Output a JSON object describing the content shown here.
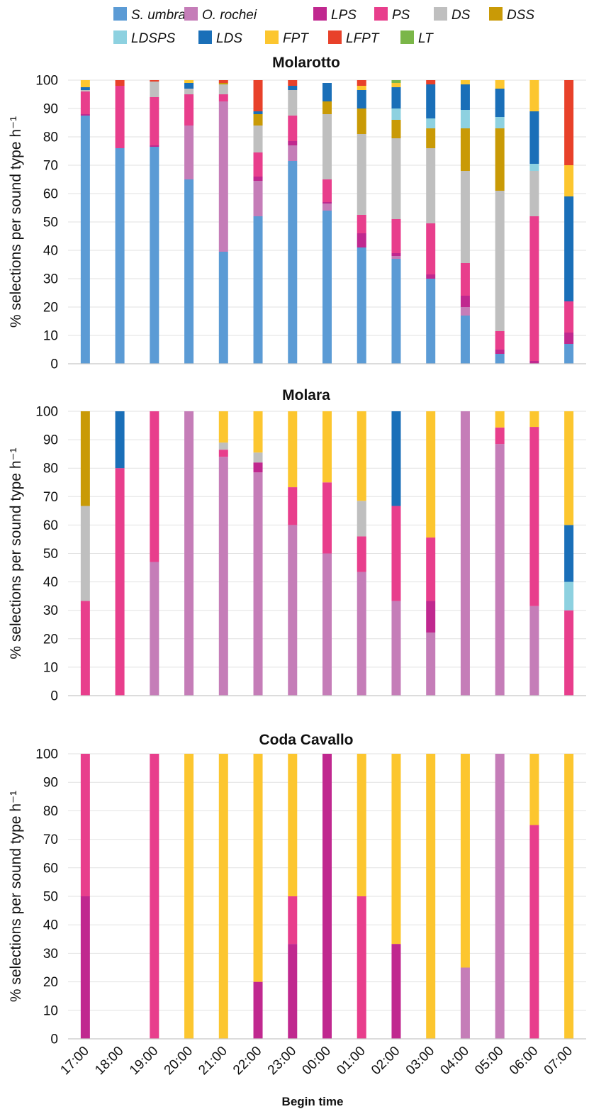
{
  "legend": [
    {
      "key": "S. umbra",
      "color": "#5b9bd5"
    },
    {
      "key": "O. rochei",
      "color": "#c57db8"
    },
    {
      "key": "LPS",
      "color": "#c0288f"
    },
    {
      "key": "PS",
      "color": "#e83e8c"
    },
    {
      "key": "DS",
      "color": "#bfbfbf"
    },
    {
      "key": "DSS",
      "color": "#c99a06"
    },
    {
      "key": "LDSPS",
      "color": "#8dd1e0"
    },
    {
      "key": "LDS",
      "color": "#1a6fb8"
    },
    {
      "key": "FPT",
      "color": "#fcc62f"
    },
    {
      "key": "LFPT",
      "color": "#e8412a"
    },
    {
      "key": "LT",
      "color": "#7ab648"
    }
  ],
  "x_axis_title": "Begin time",
  "chart_data": [
    {
      "type": "bar",
      "stacked": true,
      "title": "Molarotto",
      "ylabel": "% selections per sound type h⁻¹",
      "ylim": [
        0,
        100
      ],
      "yticks": [
        0,
        10,
        20,
        30,
        40,
        50,
        60,
        70,
        80,
        90,
        100
      ],
      "grid": true,
      "categories": [
        "17:00",
        "18:00",
        "19:00",
        "20:00",
        "21:00",
        "22:00",
        "23:00",
        "00:00",
        "01:00",
        "02:00",
        "03:00",
        "04:00",
        "05:00",
        "06:00",
        "07:00"
      ],
      "series": [
        {
          "name": "S. umbra",
          "values": [
            87.5,
            76,
            76.5,
            65,
            39.5,
            52,
            71.5,
            54,
            41,
            37,
            30,
            17,
            3.5,
            0,
            7
          ]
        },
        {
          "name": "O. rochei",
          "values": [
            0,
            0,
            0,
            19,
            53,
            12.5,
            5.5,
            2.5,
            0,
            1,
            0,
            3,
            0,
            0,
            0
          ]
        },
        {
          "name": "LPS",
          "values": [
            0.5,
            0,
            0.5,
            0,
            0,
            1.5,
            1.5,
            0.5,
            5,
            1,
            1.5,
            4,
            1.5,
            1,
            4
          ]
        },
        {
          "name": "PS",
          "values": [
            8,
            22,
            17,
            11,
            2.5,
            8.5,
            9,
            8,
            6.5,
            12,
            18,
            11.5,
            6.5,
            51,
            11
          ]
        },
        {
          "name": "DS",
          "values": [
            0.5,
            0,
            5.5,
            2,
            3.5,
            9.5,
            9,
            23,
            28.5,
            28.5,
            26.5,
            32.5,
            49.5,
            16,
            0
          ]
        },
        {
          "name": "DSS",
          "values": [
            0,
            0,
            0,
            0,
            0.5,
            4,
            0,
            4.5,
            9,
            6.5,
            7,
            15,
            22,
            0,
            0
          ]
        },
        {
          "name": "LDSPS",
          "values": [
            0,
            0,
            0,
            0,
            0,
            0,
            0,
            0,
            0,
            4,
            3.5,
            6.5,
            4,
            2.5,
            0
          ]
        },
        {
          "name": "LDS",
          "values": [
            1,
            0,
            0,
            2,
            0,
            1,
            1.5,
            6.5,
            6.5,
            7.5,
            12,
            9,
            10,
            18.5,
            37
          ]
        },
        {
          "name": "FPT",
          "values": [
            2.5,
            0,
            0,
            1,
            0,
            0,
            0,
            0,
            1.5,
            1.5,
            0,
            1.5,
            3,
            11,
            11
          ]
        },
        {
          "name": "LFPT",
          "values": [
            0,
            2,
            0.5,
            0,
            1,
            11,
            2,
            0,
            2,
            0,
            1.5,
            0,
            0,
            0,
            30
          ]
        },
        {
          "name": "LT",
          "values": [
            0,
            0,
            0,
            0,
            0,
            0,
            0,
            0,
            0,
            1,
            0,
            0,
            0,
            0,
            0
          ]
        }
      ]
    },
    {
      "type": "bar",
      "stacked": true,
      "title": "Molara",
      "ylabel": "% selections per sound type h⁻¹",
      "ylim": [
        0,
        100
      ],
      "yticks": [
        0,
        10,
        20,
        30,
        40,
        50,
        60,
        70,
        80,
        90,
        100
      ],
      "grid": true,
      "categories": [
        "17:00",
        "18:00",
        "19:00",
        "20:00",
        "21:00",
        "22:00",
        "23:00",
        "00:00",
        "01:00",
        "02:00",
        "03:00",
        "04:00",
        "05:00",
        "06:00",
        "07:00"
      ],
      "series": [
        {
          "name": "S. umbra",
          "values": [
            0,
            0,
            0,
            0,
            0,
            0,
            0,
            0,
            0,
            0,
            0,
            0,
            0,
            0,
            0
          ]
        },
        {
          "name": "O. rochei",
          "values": [
            0,
            0,
            47,
            100,
            84,
            78.5,
            60,
            50,
            43.5,
            33.3,
            22.2,
            100,
            88.5,
            31.5,
            0
          ]
        },
        {
          "name": "LPS",
          "values": [
            0,
            0,
            0,
            0,
            0,
            3.5,
            0,
            0,
            0,
            0,
            11.1,
            0,
            0,
            0,
            0
          ]
        },
        {
          "name": "PS",
          "values": [
            33.3,
            80,
            53,
            0,
            2.5,
            0,
            13.3,
            25,
            12.5,
            33.4,
            22.3,
            0,
            5.8,
            63,
            30
          ]
        },
        {
          "name": "DS",
          "values": [
            33.4,
            0,
            0,
            0,
            2.5,
            3.5,
            0,
            0,
            12.5,
            0,
            0,
            0,
            0,
            0,
            0
          ]
        },
        {
          "name": "DSS",
          "values": [
            33.3,
            0,
            0,
            0,
            0,
            0,
            0,
            0,
            0,
            0,
            0,
            0,
            0,
            0,
            0
          ]
        },
        {
          "name": "LDSPS",
          "values": [
            0,
            0,
            0,
            0,
            0,
            0,
            0,
            0,
            0,
            0,
            0,
            0,
            0,
            0,
            10
          ]
        },
        {
          "name": "LDS",
          "values": [
            0,
            20,
            0,
            0,
            0,
            0,
            0,
            0,
            0,
            33.3,
            0,
            0,
            0,
            0,
            20
          ]
        },
        {
          "name": "FPT",
          "values": [
            0,
            0,
            0,
            0,
            11,
            14.5,
            26.7,
            25,
            31.5,
            0,
            44.4,
            0,
            5.7,
            5.5,
            40
          ]
        },
        {
          "name": "LFPT",
          "values": [
            0,
            0,
            0,
            0,
            0,
            0,
            0,
            0,
            0,
            0,
            0,
            0,
            0,
            0,
            0
          ]
        },
        {
          "name": "LT",
          "values": [
            0,
            0,
            0,
            0,
            0,
            0,
            0,
            0,
            0,
            0,
            0,
            0,
            0,
            0,
            0
          ]
        }
      ]
    },
    {
      "type": "bar",
      "stacked": true,
      "title": "Coda Cavallo",
      "ylabel": "% selections per sound type h⁻¹",
      "ylim": [
        0,
        100
      ],
      "yticks": [
        0,
        10,
        20,
        30,
        40,
        50,
        60,
        70,
        80,
        90,
        100
      ],
      "grid": true,
      "categories": [
        "17:00",
        "18:00",
        "19:00",
        "20:00",
        "21:00",
        "22:00",
        "23:00",
        "00:00",
        "01:00",
        "02:00",
        "03:00",
        "04:00",
        "05:00",
        "06:00",
        "07:00"
      ],
      "series": [
        {
          "name": "S. umbra",
          "values": [
            0,
            0,
            0,
            0,
            0,
            0,
            0,
            0,
            0,
            0,
            0,
            0,
            0,
            0,
            0
          ]
        },
        {
          "name": "O. rochei",
          "values": [
            0,
            0,
            0,
            0,
            0,
            0,
            0,
            0,
            0,
            0,
            0,
            25,
            100,
            0,
            0
          ]
        },
        {
          "name": "LPS",
          "values": [
            50,
            0,
            0,
            0,
            0,
            20,
            33.3,
            100,
            0,
            33.3,
            0,
            0,
            0,
            0,
            0
          ]
        },
        {
          "name": "PS",
          "values": [
            50,
            0,
            100,
            0,
            0,
            0,
            16.7,
            0,
            50,
            0,
            0,
            0,
            0,
            75,
            0
          ]
        },
        {
          "name": "DS",
          "values": [
            0,
            0,
            0,
            0,
            0,
            0,
            0,
            0,
            0,
            0,
            0,
            0,
            0,
            0,
            0
          ]
        },
        {
          "name": "DSS",
          "values": [
            0,
            0,
            0,
            0,
            0,
            0,
            0,
            0,
            0,
            0,
            0,
            0,
            0,
            0,
            0
          ]
        },
        {
          "name": "LDSPS",
          "values": [
            0,
            0,
            0,
            0,
            0,
            0,
            0,
            0,
            0,
            0,
            0,
            0,
            0,
            0,
            0
          ]
        },
        {
          "name": "LDS",
          "values": [
            0,
            0,
            0,
            0,
            0,
            0,
            0,
            0,
            0,
            0,
            0,
            0,
            0,
            0,
            0
          ]
        },
        {
          "name": "FPT",
          "values": [
            0,
            0,
            0,
            100,
            100,
            80,
            50,
            0,
            50,
            66.7,
            100,
            75,
            0,
            25,
            100
          ]
        },
        {
          "name": "LFPT",
          "values": [
            0,
            0,
            0,
            0,
            0,
            0,
            0,
            0,
            0,
            0,
            0,
            0,
            0,
            0,
            0
          ]
        },
        {
          "name": "LT",
          "values": [
            0,
            0,
            0,
            0,
            0,
            0,
            0,
            0,
            0,
            0,
            0,
            0,
            0,
            0,
            0
          ]
        }
      ]
    }
  ]
}
